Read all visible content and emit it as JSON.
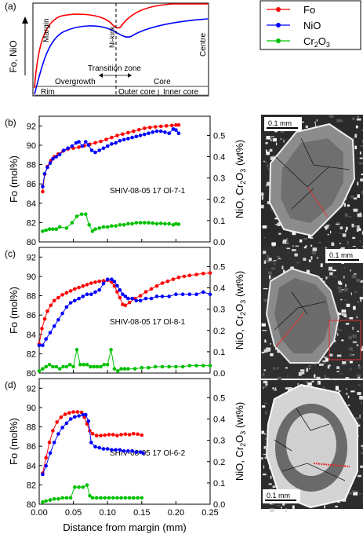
{
  "chart_data": [
    {
      "panel": "(a)",
      "type": "line",
      "schematic": true,
      "ylabel": "Fo, NiO",
      "annotations": [
        "Margin",
        "Ni-kink",
        "Transition zone",
        "Centre",
        "Overgrowth",
        "Core",
        "Rim",
        "Outer core",
        "Inner core"
      ],
      "series": [
        {
          "name": "Fo",
          "color": "#ff0000"
        },
        {
          "name": "NiO",
          "color": "#0000ff"
        }
      ]
    },
    {
      "panel": "(b)",
      "type": "line",
      "label": "SHIV-08-05 17 Ol-7-1",
      "image_scale": "0.1 mm",
      "ylabel": "Fo (mol%)",
      "y2label": "NiO, Cr2O3 (wt%)",
      "xlim": [
        0,
        0.25
      ],
      "ylim": [
        80,
        93
      ],
      "y2lim": [
        0,
        0.59
      ],
      "series": [
        {
          "name": "Fo",
          "axis": "left",
          "color": "#ff0000",
          "x": [
            0.005,
            0.008,
            0.012,
            0.017,
            0.022,
            0.028,
            0.035,
            0.042,
            0.05,
            0.058,
            0.066,
            0.074,
            0.082,
            0.09,
            0.098,
            0.106,
            0.114,
            0.122,
            0.13,
            0.138,
            0.146,
            0.154,
            0.162,
            0.17,
            0.178,
            0.186,
            0.194,
            0.2,
            0.204
          ],
          "y": [
            85.2,
            87.0,
            87.8,
            88.4,
            88.8,
            89.1,
            89.4,
            89.6,
            89.7,
            89.8,
            89.95,
            90.1,
            90.25,
            90.4,
            90.6,
            90.8,
            91.0,
            91.15,
            91.3,
            91.45,
            91.6,
            91.75,
            91.85,
            91.9,
            91.95,
            92.0,
            92.05,
            92.1,
            92.1
          ]
        },
        {
          "name": "NiO",
          "axis": "right",
          "color": "#0000ff",
          "x": [
            0.005,
            0.008,
            0.012,
            0.016,
            0.02,
            0.025,
            0.03,
            0.036,
            0.042,
            0.048,
            0.054,
            0.058,
            0.063,
            0.068,
            0.072,
            0.077,
            0.082,
            0.088,
            0.094,
            0.1,
            0.106,
            0.112,
            0.118,
            0.124,
            0.13,
            0.136,
            0.142,
            0.148,
            0.154,
            0.16,
            0.166,
            0.172,
            0.178,
            0.184,
            0.19,
            0.196,
            0.2,
            0.204
          ],
          "y": [
            0.26,
            0.32,
            0.35,
            0.37,
            0.39,
            0.4,
            0.41,
            0.43,
            0.44,
            0.45,
            0.465,
            0.47,
            0.45,
            0.47,
            0.455,
            0.43,
            0.42,
            0.43,
            0.44,
            0.45,
            0.46,
            0.465,
            0.475,
            0.48,
            0.485,
            0.49,
            0.495,
            0.5,
            0.505,
            0.51,
            0.515,
            0.52,
            0.52,
            0.515,
            0.51,
            0.53,
            0.525,
            0.51
          ]
        },
        {
          "name": "Cr2O3",
          "axis": "right",
          "color": "#00c000",
          "x": [
            0.005,
            0.01,
            0.015,
            0.02,
            0.025,
            0.03,
            0.04,
            0.048,
            0.055,
            0.062,
            0.068,
            0.073,
            0.078,
            0.082,
            0.088,
            0.094,
            0.1,
            0.106,
            0.112,
            0.118,
            0.124,
            0.13,
            0.136,
            0.142,
            0.148,
            0.154,
            0.16,
            0.166,
            0.172,
            0.178,
            0.184,
            0.19,
            0.196,
            0.2,
            0.204
          ],
          "y": [
            0.05,
            0.055,
            0.06,
            0.06,
            0.06,
            0.07,
            0.065,
            0.09,
            0.12,
            0.13,
            0.13,
            0.08,
            0.05,
            0.06,
            0.065,
            0.07,
            0.07,
            0.075,
            0.075,
            0.08,
            0.08,
            0.085,
            0.085,
            0.09,
            0.09,
            0.09,
            0.09,
            0.088,
            0.085,
            0.087,
            0.085,
            0.085,
            0.08,
            0.085,
            0.083
          ]
        }
      ]
    },
    {
      "panel": "(c)",
      "type": "line",
      "label": "SHIV-08-05 17 Ol-8-1",
      "image_scale": "0.1 mm",
      "ylabel": "Fo (mol%)",
      "y2label": "NiO, Cr2O3 (wt%)",
      "xlim": [
        0,
        0.25
      ],
      "ylim": [
        80,
        93
      ],
      "y2lim": [
        0,
        0.59
      ],
      "series": [
        {
          "name": "Fo",
          "axis": "left",
          "color": "#ff0000",
          "x": [
            0.0,
            0.004,
            0.008,
            0.012,
            0.017,
            0.022,
            0.028,
            0.034,
            0.04,
            0.046,
            0.052,
            0.058,
            0.064,
            0.07,
            0.076,
            0.082,
            0.088,
            0.094,
            0.1,
            0.106,
            0.11,
            0.114,
            0.118,
            0.122,
            0.126,
            0.132,
            0.14,
            0.148,
            0.156,
            0.164,
            0.172,
            0.18,
            0.188,
            0.196,
            0.204,
            0.212,
            0.22,
            0.23,
            0.24,
            0.25
          ],
          "y": [
            83.0,
            84.6,
            85.6,
            86.4,
            87.0,
            87.5,
            87.8,
            88.1,
            88.3,
            88.5,
            88.7,
            88.85,
            89.0,
            89.15,
            89.3,
            89.4,
            89.5,
            89.55,
            89.6,
            89.4,
            89.0,
            88.4,
            87.8,
            87.1,
            87.0,
            87.3,
            87.7,
            88.0,
            88.4,
            88.7,
            89.0,
            89.3,
            89.5,
            89.7,
            89.9,
            90.0,
            90.1,
            90.2,
            90.3,
            90.35
          ]
        },
        {
          "name": "NiO",
          "axis": "right",
          "color": "#0000ff",
          "x": [
            0.0,
            0.005,
            0.01,
            0.016,
            0.022,
            0.028,
            0.034,
            0.04,
            0.046,
            0.052,
            0.058,
            0.064,
            0.07,
            0.076,
            0.082,
            0.088,
            0.094,
            0.1,
            0.106,
            0.11,
            0.114,
            0.118,
            0.122,
            0.126,
            0.13,
            0.136,
            0.142,
            0.148,
            0.156,
            0.164,
            0.172,
            0.18,
            0.19,
            0.2,
            0.21,
            0.22,
            0.23,
            0.24,
            0.25
          ],
          "y": [
            0.13,
            0.13,
            0.16,
            0.19,
            0.22,
            0.25,
            0.28,
            0.31,
            0.33,
            0.34,
            0.35,
            0.36,
            0.37,
            0.37,
            0.38,
            0.39,
            0.42,
            0.44,
            0.44,
            0.43,
            0.41,
            0.39,
            0.37,
            0.36,
            0.35,
            0.35,
            0.34,
            0.34,
            0.35,
            0.35,
            0.36,
            0.36,
            0.36,
            0.37,
            0.37,
            0.37,
            0.37,
            0.38,
            0.37
          ]
        },
        {
          "name": "Cr2O3",
          "axis": "right",
          "color": "#00c000",
          "x": [
            0.0,
            0.005,
            0.01,
            0.015,
            0.02,
            0.025,
            0.03,
            0.035,
            0.04,
            0.045,
            0.05,
            0.055,
            0.06,
            0.065,
            0.07,
            0.075,
            0.08,
            0.085,
            0.09,
            0.095,
            0.1,
            0.105,
            0.11,
            0.115,
            0.12,
            0.125,
            0.13,
            0.14,
            0.15,
            0.16,
            0.17,
            0.18,
            0.19,
            0.2,
            0.21,
            0.22,
            0.23,
            0.24,
            0.25
          ],
          "y": [
            0.01,
            0.02,
            0.03,
            0.04,
            0.03,
            0.03,
            0.02,
            0.03,
            0.03,
            0.04,
            0.03,
            0.11,
            0.04,
            0.04,
            0.04,
            0.03,
            0.03,
            0.03,
            0.03,
            0.04,
            0.04,
            0.11,
            0.02,
            0.01,
            0.02,
            0.02,
            0.02,
            0.02,
            0.025,
            0.025,
            0.03,
            0.03,
            0.03,
            0.03,
            0.03,
            0.035,
            0.035,
            0.035,
            0.035
          ]
        }
      ]
    },
    {
      "panel": "(d)",
      "type": "line",
      "label": "SHIV-08-05 17 Ol-6-2",
      "image_scale": "0.1 mm",
      "ylabel": "Fo (mol%)",
      "y2label": "NiO, Cr2O3 (wt%)",
      "xlabel": "Distance from margin (mm)",
      "xticks": [
        "0.00",
        "0.05",
        "0.10",
        "0.15",
        "0.20",
        "0.25"
      ],
      "xlim": [
        0,
        0.25
      ],
      "ylim": [
        80,
        93
      ],
      "y2lim": [
        0,
        0.59
      ],
      "series": [
        {
          "name": "Fo",
          "axis": "left",
          "color": "#ff0000",
          "x": [
            0.005,
            0.01,
            0.015,
            0.02,
            0.026,
            0.032,
            0.038,
            0.044,
            0.05,
            0.056,
            0.062,
            0.066,
            0.07,
            0.074,
            0.078,
            0.084,
            0.09,
            0.096,
            0.102,
            0.108,
            0.114,
            0.12,
            0.126,
            0.132,
            0.138,
            0.144,
            0.15
          ],
          "y": [
            83.2,
            84.8,
            86.4,
            87.6,
            88.5,
            89.0,
            89.3,
            89.45,
            89.55,
            89.55,
            89.5,
            89.0,
            88.3,
            87.6,
            87.3,
            87.1,
            87.1,
            87.15,
            87.2,
            87.2,
            87.1,
            87.2,
            87.25,
            87.2,
            87.3,
            87.25,
            87.15
          ]
        },
        {
          "name": "NiO",
          "axis": "right",
          "color": "#0000ff",
          "x": [
            0.005,
            0.01,
            0.016,
            0.022,
            0.028,
            0.034,
            0.04,
            0.046,
            0.052,
            0.058,
            0.064,
            0.068,
            0.072,
            0.076,
            0.082,
            0.088,
            0.094,
            0.1,
            0.106,
            0.112,
            0.118,
            0.124,
            0.13,
            0.136,
            0.142,
            0.148,
            0.152
          ],
          "y": [
            0.14,
            0.18,
            0.24,
            0.29,
            0.33,
            0.36,
            0.38,
            0.4,
            0.41,
            0.415,
            0.42,
            0.42,
            0.39,
            0.29,
            0.27,
            0.265,
            0.26,
            0.26,
            0.255,
            0.255,
            0.255,
            0.25,
            0.25,
            0.25,
            0.245,
            0.245,
            0.24
          ]
        },
        {
          "name": "Cr2O3",
          "axis": "right",
          "color": "#00c000",
          "x": [
            0.005,
            0.01,
            0.016,
            0.022,
            0.028,
            0.034,
            0.04,
            0.046,
            0.052,
            0.058,
            0.064,
            0.07,
            0.074,
            0.078,
            0.084,
            0.09,
            0.096,
            0.102,
            0.108,
            0.114,
            0.12,
            0.126,
            0.132,
            0.138,
            0.144,
            0.15
          ],
          "y": [
            0.01,
            0.015,
            0.02,
            0.025,
            0.025,
            0.03,
            0.03,
            0.03,
            0.08,
            0.08,
            0.08,
            0.09,
            0.04,
            0.03,
            0.03,
            0.03,
            0.03,
            0.03,
            0.03,
            0.03,
            0.03,
            0.03,
            0.03,
            0.03,
            0.03,
            0.03
          ]
        }
      ]
    }
  ],
  "legend": {
    "items": [
      {
        "name": "Fo",
        "html": "Fo",
        "color": "#ff0000"
      },
      {
        "name": "NiO",
        "html": "NiO",
        "color": "#0000ff"
      },
      {
        "name": "Cr2O3",
        "html": "Cr<tspan dy='3' font-size='9'>2</tspan><tspan dy='-3'>O</tspan><tspan dy='3' font-size='9'>3</tspan>",
        "color": "#00c000"
      }
    ]
  }
}
